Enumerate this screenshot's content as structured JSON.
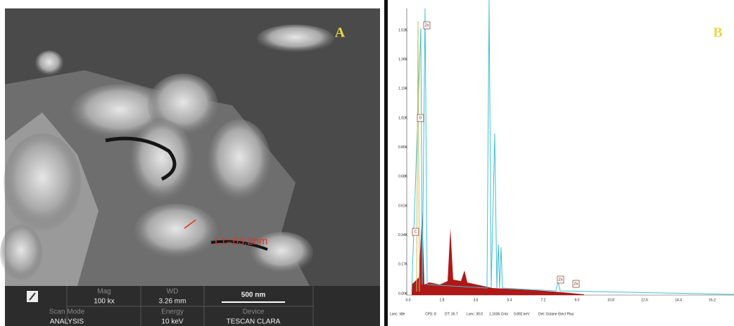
{
  "panel_a": {
    "label": "A",
    "measurement": "L1=63.2nm",
    "info": {
      "mag_label": "Mag",
      "mag": "100 kx",
      "wd_label": "WD",
      "wd": "3.26 mm",
      "scale": "500 nm",
      "scan_label": "Scan Mode",
      "scan": "ANALYSIS",
      "energy_label": "Energy",
      "energy": "10 keV",
      "device_label": "Device",
      "device": "TESCAN CLARA"
    }
  },
  "panel_b": {
    "label": "B",
    "y_tick_labels": [
      "1.53K",
      "1.36K",
      "1.19K",
      "1.02K",
      "0.85K",
      "0.68K",
      "0.51K",
      "0.34K",
      "0.17K",
      "0.00K"
    ],
    "x_tick_labels": [
      "0.0",
      "1.8",
      "3.6",
      "5.4",
      "7.2",
      "9.0",
      "10.8",
      "12.6",
      "14.4",
      "16.2"
    ],
    "peak_labels": [
      "Zn",
      "O",
      "C",
      "Zn",
      "Zn"
    ],
    "footer": [
      "Lsec: Idle",
      "CPS: 8",
      "DT: 16.7",
      "Lsec: 30.0",
      "1.1636 Cnts",
      "0.892 keV",
      "Det: Octane Elect Plus"
    ]
  }
}
